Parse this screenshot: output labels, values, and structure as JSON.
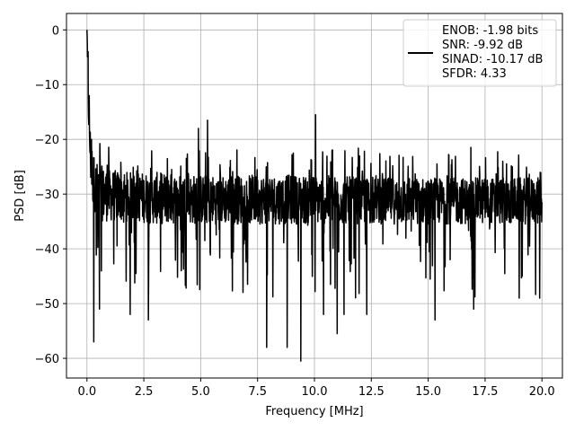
{
  "chart_data": {
    "type": "line",
    "xlabel": "Frequency [MHz]",
    "ylabel": "PSD [dB]",
    "xlim": [
      -0.9,
      20.9
    ],
    "ylim": [
      -63.6,
      3.0
    ],
    "xticks": [
      0.0,
      2.5,
      5.0,
      7.5,
      10.0,
      12.5,
      15.0,
      17.5,
      20.0
    ],
    "xtick_labels": [
      "0.0",
      "2.5",
      "5.0",
      "7.5",
      "10.0",
      "12.5",
      "15.0",
      "17.5",
      "20.0"
    ],
    "yticks": [
      0,
      -10,
      -20,
      -30,
      -40,
      -50,
      -60
    ],
    "ytick_labels": [
      "0",
      "−10",
      "−20",
      "−30",
      "−40",
      "−50",
      "−60"
    ],
    "grid": true,
    "legend_position": "top-right",
    "legend_entries": [
      "ENOB: -1.98 bits",
      "SNR: -9.92 dB",
      "SINAD: -10.17 dB",
      "SFDR: 4.33"
    ],
    "series": [
      {
        "color": "#000000",
        "envelope": {
          "x": [
            0.0,
            0.08,
            0.15,
            0.25,
            0.4,
            0.7,
            1.0,
            2.0,
            3.0,
            5.0,
            7.5,
            10.0,
            12.5,
            15.0,
            17.5,
            20.0
          ],
          "upper": [
            0.0,
            -10.0,
            -18.0,
            -22.0,
            -24.0,
            -25.0,
            -25.5,
            -26.0,
            -26.0,
            -26.5,
            -26.5,
            -26.5,
            -27.0,
            -27.0,
            -27.0,
            -27.0
          ],
          "lower": [
            -5.0,
            -20.0,
            -28.0,
            -32.0,
            -34.0,
            -35.0,
            -35.0,
            -35.0,
            -35.5,
            -35.5,
            -35.5,
            -35.5,
            -35.5,
            -35.5,
            -35.5,
            -35.5
          ],
          "peak_high": [
            -18.0,
            -19.0,
            -19.5,
            -20.0,
            -20.5,
            -20.5,
            -21.0,
            -21.0,
            -21.0,
            -21.5,
            -21.5,
            -21.0,
            -21.5,
            -21.5,
            -21.0,
            -24.0
          ],
          "dip_low": [
            -30.0,
            -44.0,
            -48.0,
            -50.0,
            -50.0,
            -48.0,
            -48.0,
            -48.0,
            -48.0,
            -48.0,
            -49.0,
            -49.0,
            -49.0,
            -49.0,
            -49.0,
            -49.0
          ]
        },
        "notable_points": [
          {
            "x": 0.0,
            "y": 0.0
          },
          {
            "x": 0.05,
            "y": -4.0
          },
          {
            "x": 0.1,
            "y": -12.0
          },
          {
            "x": 0.2,
            "y": -20.0
          },
          {
            "x": 0.3,
            "y": -57.0
          },
          {
            "x": 0.55,
            "y": -51.0
          },
          {
            "x": 1.9,
            "y": -52.0
          },
          {
            "x": 2.7,
            "y": -53.0
          },
          {
            "x": 4.9,
            "y": -18.0
          },
          {
            "x": 5.3,
            "y": -16.5
          },
          {
            "x": 7.9,
            "y": -58.0
          },
          {
            "x": 8.8,
            "y": -58.0
          },
          {
            "x": 9.4,
            "y": -60.5
          },
          {
            "x": 10.05,
            "y": -15.5
          },
          {
            "x": 10.4,
            "y": -52.0
          },
          {
            "x": 11.0,
            "y": -55.5
          },
          {
            "x": 11.3,
            "y": -52.0
          },
          {
            "x": 12.3,
            "y": -52.0
          },
          {
            "x": 15.3,
            "y": -53.0
          },
          {
            "x": 17.0,
            "y": -51.0
          },
          {
            "x": 19.0,
            "y": -49.0
          },
          {
            "x": 19.9,
            "y": -49.0
          }
        ],
        "num_points": 1800
      }
    ]
  }
}
